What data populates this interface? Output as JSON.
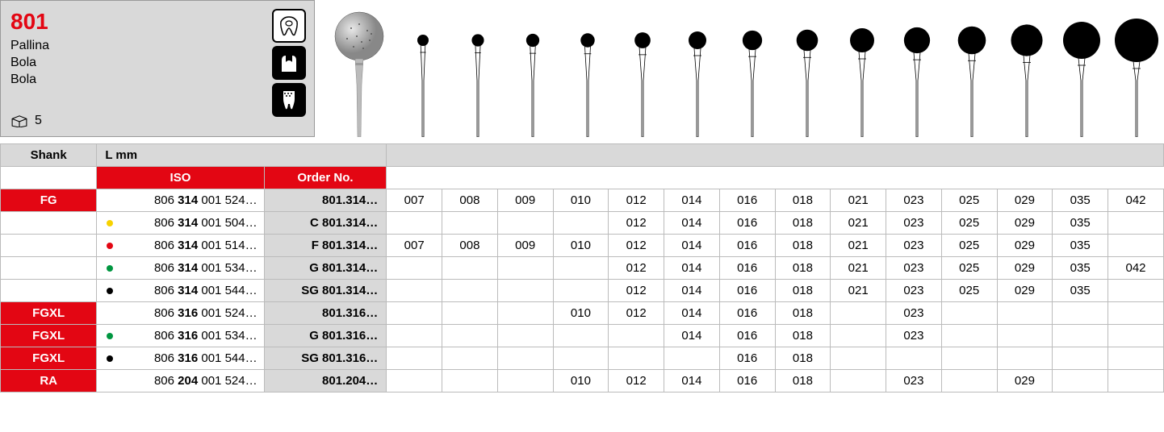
{
  "header": {
    "product_number": "801",
    "names": [
      "Pallina",
      "Bola",
      "Bola"
    ],
    "pack_qty": "5"
  },
  "icons": [
    "cavity-icon",
    "crown-icon",
    "root-icon"
  ],
  "bur_sizes": [
    7,
    8,
    9,
    10,
    12,
    14,
    16,
    18,
    21,
    23,
    25,
    29,
    35,
    42
  ],
  "table": {
    "shank_label": "Shank",
    "lmm_label": "L mm",
    "iso_label": "ISO",
    "order_label": "Order No.",
    "size_cols": [
      "007",
      "008",
      "009",
      "010",
      "012",
      "014",
      "016",
      "018",
      "021",
      "023",
      "025",
      "029",
      "035",
      "042"
    ],
    "rows": [
      {
        "shank": "FG",
        "dot": null,
        "iso_pre": "806",
        "iso_bold": "314",
        "iso_post": "001 524…",
        "order": "801.314…",
        "sizes": [
          "007",
          "008",
          "009",
          "010",
          "012",
          "014",
          "016",
          "018",
          "021",
          "023",
          "025",
          "029",
          "035",
          "042"
        ]
      },
      {
        "shank": "",
        "dot": "#f7d200",
        "iso_pre": "806",
        "iso_bold": "314",
        "iso_post": "001 504…",
        "order": "C 801.314…",
        "sizes": [
          "",
          "",
          "",
          "",
          "012",
          "014",
          "016",
          "018",
          "021",
          "023",
          "025",
          "029",
          "035",
          ""
        ]
      },
      {
        "shank": "",
        "dot": "#e30613",
        "iso_pre": "806",
        "iso_bold": "314",
        "iso_post": "001 514…",
        "order": "F 801.314…",
        "sizes": [
          "007",
          "008",
          "009",
          "010",
          "012",
          "014",
          "016",
          "018",
          "021",
          "023",
          "025",
          "029",
          "035",
          ""
        ]
      },
      {
        "shank": "",
        "dot": "#009640",
        "iso_pre": "806",
        "iso_bold": "314",
        "iso_post": "001 534…",
        "order": "G 801.314…",
        "sizes": [
          "",
          "",
          "",
          "",
          "012",
          "014",
          "016",
          "018",
          "021",
          "023",
          "025",
          "029",
          "035",
          "042"
        ]
      },
      {
        "shank": "",
        "dot": "#000000",
        "iso_pre": "806",
        "iso_bold": "314",
        "iso_post": "001 544…",
        "order": "SG 801.314…",
        "sizes": [
          "",
          "",
          "",
          "",
          "012",
          "014",
          "016",
          "018",
          "021",
          "023",
          "025",
          "029",
          "035",
          ""
        ]
      },
      {
        "shank": "FGXL",
        "dot": null,
        "iso_pre": "806",
        "iso_bold": "316",
        "iso_post": "001 524…",
        "order": "801.316…",
        "sizes": [
          "",
          "",
          "",
          "010",
          "012",
          "014",
          "016",
          "018",
          "",
          "023",
          "",
          "",
          "",
          ""
        ]
      },
      {
        "shank": "FGXL",
        "dot": "#009640",
        "iso_pre": "806",
        "iso_bold": "316",
        "iso_post": "001 534…",
        "order": "G 801.316…",
        "sizes": [
          "",
          "",
          "",
          "",
          "",
          "014",
          "016",
          "018",
          "",
          "023",
          "",
          "",
          "",
          ""
        ]
      },
      {
        "shank": "FGXL",
        "dot": "#000000",
        "iso_pre": "806",
        "iso_bold": "316",
        "iso_post": "001 544…",
        "order": "SG 801.316…",
        "sizes": [
          "",
          "",
          "",
          "",
          "",
          "",
          "016",
          "018",
          "",
          "",
          "",
          "",
          "",
          ""
        ]
      },
      {
        "shank": "RA",
        "dot": null,
        "iso_pre": "806",
        "iso_bold": "204",
        "iso_post": "001 524…",
        "order": "801.204…",
        "sizes": [
          "",
          "",
          "",
          "010",
          "012",
          "014",
          "016",
          "018",
          "",
          "023",
          "",
          "029",
          "",
          ""
        ]
      }
    ]
  },
  "colors": {
    "red": "#e30613",
    "grey": "#d9d9d9",
    "border": "#bbbbbb"
  }
}
